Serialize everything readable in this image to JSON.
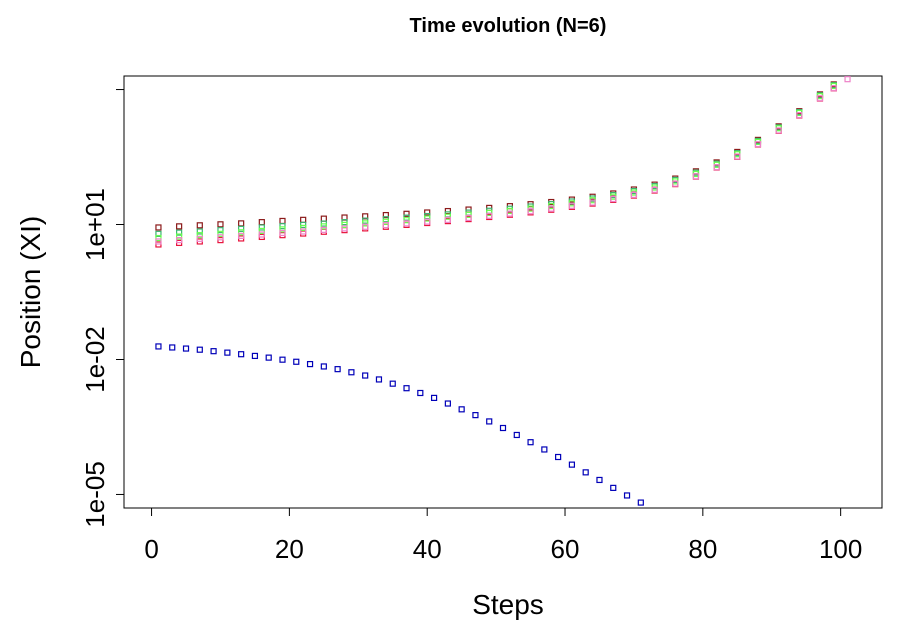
{
  "chart_data": {
    "type": "scatter",
    "title": "Time evolution (N=6)",
    "xlabel": "Steps",
    "ylabel": "Position (XI)",
    "xlim": [
      -4,
      106
    ],
    "ylim": [
      5e-06,
      20000
    ],
    "log_y": true,
    "marker": "open-square",
    "x_ticks": [
      {
        "value": 0,
        "label": "0"
      },
      {
        "value": 20,
        "label": "20"
      },
      {
        "value": 40,
        "label": "40"
      },
      {
        "value": 60,
        "label": "60"
      },
      {
        "value": 80,
        "label": "80"
      },
      {
        "value": 100,
        "label": "100"
      }
    ],
    "y_ticks": [
      {
        "value": 1e-05,
        "label": "1e-05"
      },
      {
        "value": 0.01,
        "label": "1e-02"
      },
      {
        "value": 10,
        "label": "1e+01"
      },
      {
        "value": 10000,
        "label": ""
      }
    ],
    "series": [
      {
        "color": "#8b1a1a",
        "x": [
          1,
          4,
          7,
          10,
          13,
          16,
          19,
          22,
          25,
          28,
          31,
          34,
          37,
          40,
          43,
          46,
          49,
          52,
          55,
          58,
          61,
          64,
          67,
          70,
          73,
          76,
          79,
          82,
          85,
          88,
          91,
          94,
          97,
          99,
          101
        ],
        "y": [
          8.6,
          9.1,
          9.6,
          10.1,
          10.6,
          11.3,
          12,
          12.7,
          13.5,
          14.3,
          15.2,
          16.2,
          17.3,
          18.5,
          19.9,
          21.5,
          23.4,
          25.6,
          28.3,
          31.6,
          35.8,
          41.4,
          49,
          60,
          77,
          105,
          152,
          240,
          410,
          760,
          1520,
          3300,
          7800,
          13000,
          21000
        ]
      },
      {
        "color": "#e8133c",
        "x": [
          1,
          4,
          7,
          10,
          13,
          16,
          19,
          22,
          25,
          28,
          31,
          34,
          37,
          40,
          43,
          46,
          49,
          52,
          55,
          58,
          61,
          64,
          67,
          70,
          73,
          76,
          79,
          82,
          85,
          88,
          91,
          94,
          97,
          99,
          101
        ],
        "y": [
          3.6,
          3.9,
          4.2,
          4.5,
          4.9,
          5.3,
          5.8,
          6.3,
          6.9,
          7.5,
          8.2,
          8.9,
          9.8,
          10.8,
          11.9,
          13.2,
          14.7,
          16.5,
          18.6,
          21.3,
          24.7,
          29.2,
          35.3,
          44,
          57,
          79,
          116,
          185,
          320,
          600,
          1210,
          2650,
          6300,
          10600,
          17500
        ]
      },
      {
        "color": "#3cb371",
        "x": [
          1,
          4,
          7,
          10,
          13,
          16,
          19,
          22,
          25,
          28,
          31,
          34,
          37,
          40,
          43,
          46,
          49,
          52,
          55,
          58,
          61,
          64,
          67,
          70,
          73,
          76,
          79,
          82,
          85,
          88,
          91,
          94,
          97,
          99,
          101
        ],
        "y": [
          6.2,
          6.6,
          7,
          7.5,
          8,
          8.6,
          9.2,
          9.8,
          10.5,
          11.3,
          12.2,
          13.1,
          14.2,
          15.4,
          16.8,
          18.4,
          20.2,
          22.4,
          25.1,
          28.4,
          32.5,
          37.9,
          45.2,
          55.5,
          71.5,
          98,
          142,
          225,
          385,
          720,
          1440,
          3150,
          7450,
          12500,
          20500
        ]
      },
      {
        "color": "#6aff4f",
        "x": [
          1,
          4,
          7,
          10,
          13,
          16,
          19,
          22,
          25,
          28,
          31,
          34,
          37,
          40,
          43,
          46,
          49,
          52,
          55,
          58,
          61,
          64,
          67,
          70,
          73,
          76,
          79,
          82,
          85,
          88,
          91,
          94,
          97,
          99,
          101
        ],
        "y": [
          5,
          5.4,
          5.8,
          6.2,
          6.7,
          7.2,
          7.8,
          8.4,
          9.1,
          9.8,
          10.6,
          11.5,
          12.5,
          13.6,
          14.9,
          16.4,
          18.1,
          20.1,
          22.6,
          25.7,
          29.6,
          34.7,
          41.6,
          51.3,
          66.4,
          91,
          133,
          212,
          365,
          685,
          1380,
          3020,
          7150,
          12000,
          19700
        ]
      },
      {
        "color": "#ee82c8",
        "x": [
          1,
          4,
          7,
          10,
          13,
          16,
          19,
          22,
          25,
          28,
          31,
          34,
          37,
          40,
          43,
          46,
          49,
          52,
          55,
          58,
          61,
          64,
          67,
          70,
          73,
          76,
          79,
          82,
          85,
          88,
          91,
          94,
          97,
          99,
          101
        ],
        "y": [
          4.2,
          4.5,
          4.8,
          5.2,
          5.6,
          6,
          6.5,
          7,
          7.6,
          8.2,
          8.9,
          9.7,
          10.6,
          11.6,
          12.7,
          14,
          15.6,
          17.5,
          19.7,
          22.5,
          26.1,
          30.7,
          36.9,
          45.6,
          59,
          81,
          118,
          188,
          325,
          610,
          1230,
          2700,
          6400,
          10700,
          17000
        ]
      },
      {
        "color": "#0000b8",
        "x": [
          1,
          3,
          5,
          7,
          9,
          11,
          13,
          15,
          17,
          19,
          21,
          23,
          25,
          27,
          29,
          31,
          33,
          35,
          37,
          39,
          41,
          43,
          45,
          47,
          49,
          51,
          53,
          55,
          57,
          59,
          61,
          63,
          65,
          67,
          69,
          71,
          73,
          75,
          76
        ],
        "y": [
          0.0195,
          0.0185,
          0.0175,
          0.0165,
          0.0153,
          0.0142,
          0.0131,
          0.012,
          0.011,
          0.0099,
          0.0089,
          0.0079,
          0.007,
          0.0061,
          0.0052,
          0.0044,
          0.0036,
          0.0029,
          0.0023,
          0.0018,
          0.0014,
          0.00105,
          0.00078,
          0.00058,
          0.00042,
          0.0003,
          0.00021,
          0.000145,
          0.0001,
          6.8e-05,
          4.6e-05,
          3.1e-05,
          2.1e-05,
          1.4e-05,
          9.5e-06,
          6.6e-06,
          4.6e-06,
          3.4e-06,
          2.7e-06
        ]
      }
    ]
  }
}
